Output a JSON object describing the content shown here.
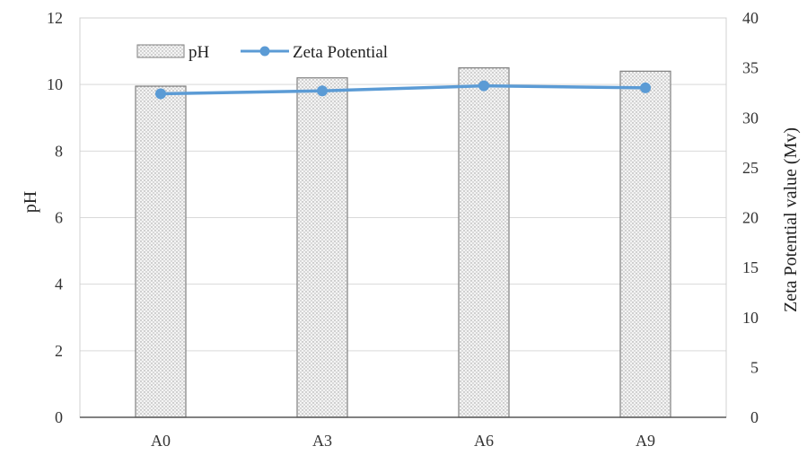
{
  "chart_data": {
    "type": "bar",
    "categories": [
      "A0",
      "A3",
      "A6",
      "A9"
    ],
    "series": [
      {
        "name": "pH",
        "type": "bar",
        "axis": "left",
        "values": [
          9.95,
          10.2,
          10.5,
          10.4
        ],
        "color": "#f2f2f2",
        "stroke": "#7f7f7f",
        "pattern": "dotted"
      },
      {
        "name": "Zeta Potential",
        "type": "line",
        "axis": "right",
        "values": [
          32.4,
          32.7,
          33.2,
          33.0
        ],
        "color": "#5b9bd5"
      }
    ],
    "ylabel": "pH",
    "ylabel_right": "Zeta Potential value (Mv)",
    "ylim": [
      0,
      12
    ],
    "yticks": [
      "0",
      "2",
      "4",
      "6",
      "8",
      "10",
      "12"
    ],
    "ylim_right": [
      0,
      40
    ],
    "yticks_right": [
      "0",
      "5",
      "10",
      "15",
      "20",
      "25",
      "30",
      "35",
      "40"
    ],
    "grid": true,
    "legend_position": "top-left"
  }
}
